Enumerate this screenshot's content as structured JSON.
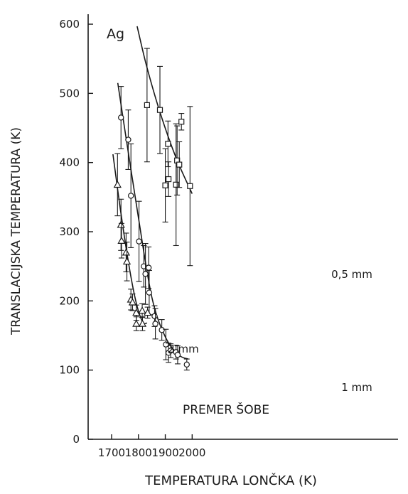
{
  "chart_data": {
    "type": "scatter",
    "title": "",
    "xlabel": "TEMPERATURA LONČKA (K)",
    "ylabel": "TRANSLACIJSKA TEMPERATURA (K)",
    "xlim": [
      1690,
      2030
    ],
    "ylim": [
      0,
      625
    ],
    "x_ticks": [
      1700,
      1800,
      1900,
      2000
    ],
    "y_ticks": [
      0,
      100,
      200,
      300,
      400,
      500,
      600
    ],
    "grid": false,
    "legend": "none",
    "annotations": {
      "element": "Ag",
      "footer": "PREMER ŠOBE"
    },
    "series": [
      {
        "name": "0,5 mm",
        "marker": "square",
        "points": [
          {
            "x": 1832,
            "y": 483,
            "err": 82
          },
          {
            "x": 1880,
            "y": 476,
            "err": 63
          },
          {
            "x": 1900,
            "y": 367,
            "err": 53
          },
          {
            "x": 1910,
            "y": 427,
            "err": 33
          },
          {
            "x": 1912,
            "y": 376,
            "err": 25
          },
          {
            "x": 1940,
            "y": 368,
            "err": 88
          },
          {
            "x": 1944,
            "y": 403,
            "err": 50
          },
          {
            "x": 1952,
            "y": 397,
            "err": 33
          },
          {
            "x": 1960,
            "y": 459,
            "err": 12
          },
          {
            "x": 1992,
            "y": 366,
            "err": 115
          }
        ],
        "curve": [
          [
            1795,
            597
          ],
          [
            1830,
            540
          ],
          [
            1880,
            473
          ],
          [
            1940,
            407
          ],
          [
            2000,
            355
          ]
        ]
      },
      {
        "name": "1 mm",
        "marker": "circle",
        "points": [
          {
            "x": 1735,
            "y": 465,
            "err": 45
          },
          {
            "x": 1762,
            "y": 433,
            "err": 43
          },
          {
            "x": 1772,
            "y": 352,
            "err": 75
          },
          {
            "x": 1802,
            "y": 286,
            "err": 58
          },
          {
            "x": 1820,
            "y": 250,
            "err": 30
          },
          {
            "x": 1826,
            "y": 239,
            "err": 44
          },
          {
            "x": 1838,
            "y": 248,
            "err": 30
          },
          {
            "x": 1840,
            "y": 212,
            "err": 32
          },
          {
            "x": 1860,
            "y": 178,
            "err": 15
          },
          {
            "x": 1863,
            "y": 167,
            "err": 22
          },
          {
            "x": 1887,
            "y": 158,
            "err": 15
          },
          {
            "x": 1902,
            "y": 137,
            "err": 22
          },
          {
            "x": 1912,
            "y": 125,
            "err": 14
          },
          {
            "x": 1920,
            "y": 128,
            "err": 10
          },
          {
            "x": 1940,
            "y": 126,
            "err": 10
          },
          {
            "x": 1946,
            "y": 122,
            "err": 13
          },
          {
            "x": 1980,
            "y": 108,
            "err": 8
          }
        ],
        "curve": [
          [
            1723,
            515
          ],
          [
            1760,
            420
          ],
          [
            1800,
            320
          ],
          [
            1850,
            205
          ],
          [
            1900,
            148
          ],
          [
            1950,
            122
          ],
          [
            1985,
            116
          ]
        ]
      },
      {
        "name": "2 mm",
        "marker": "triangle",
        "points": [
          {
            "x": 1722,
            "y": 368,
            "err": 45
          },
          {
            "x": 1735,
            "y": 310,
            "err": 37
          },
          {
            "x": 1737,
            "y": 287,
            "err": 25
          },
          {
            "x": 1754,
            "y": 270,
            "err": 28
          },
          {
            "x": 1757,
            "y": 257,
            "err": 28
          },
          {
            "x": 1772,
            "y": 202,
            "err": 15
          },
          {
            "x": 1778,
            "y": 198,
            "err": 12
          },
          {
            "x": 1792,
            "y": 183,
            "err": 11
          },
          {
            "x": 1792,
            "y": 167,
            "err": 10
          },
          {
            "x": 1814,
            "y": 186,
            "err": 10
          },
          {
            "x": 1815,
            "y": 167,
            "err": 10
          },
          {
            "x": 1834,
            "y": 183,
            "err": 8
          }
        ],
        "curve": [
          [
            1705,
            412
          ],
          [
            1730,
            340
          ],
          [
            1760,
            262
          ],
          [
            1790,
            200
          ],
          [
            1815,
            170
          ],
          [
            1832,
            168
          ]
        ]
      }
    ]
  }
}
